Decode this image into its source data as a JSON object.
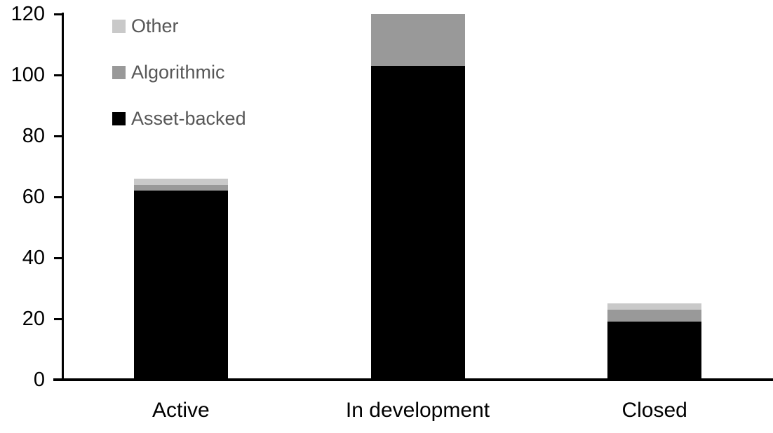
{
  "chart_data": {
    "type": "bar",
    "stacked": true,
    "title": "",
    "categories": [
      "Active",
      "In development",
      "Closed"
    ],
    "series": [
      {
        "name": "Asset-backed",
        "color": "#000000",
        "values": [
          62,
          103,
          19
        ]
      },
      {
        "name": "Algorithmic",
        "color": "#999999",
        "values": [
          2,
          17,
          4
        ]
      },
      {
        "name": "Other",
        "color": "#c9c9c9",
        "values": [
          2,
          0,
          2
        ]
      }
    ],
    "stack_totals": [
      66,
      120,
      25
    ],
    "y_axis": {
      "min": 0,
      "max": 120,
      "tick_step": 20,
      "ticks": [
        0,
        20,
        40,
        60,
        80,
        100,
        120
      ]
    },
    "legend": {
      "position": "top-left",
      "entries": [
        "Other",
        "Algorithmic",
        "Asset-backed"
      ],
      "text_color": "#575757"
    },
    "grid": false,
    "axis_color": "#000000",
    "background_color": "#ffffff"
  }
}
